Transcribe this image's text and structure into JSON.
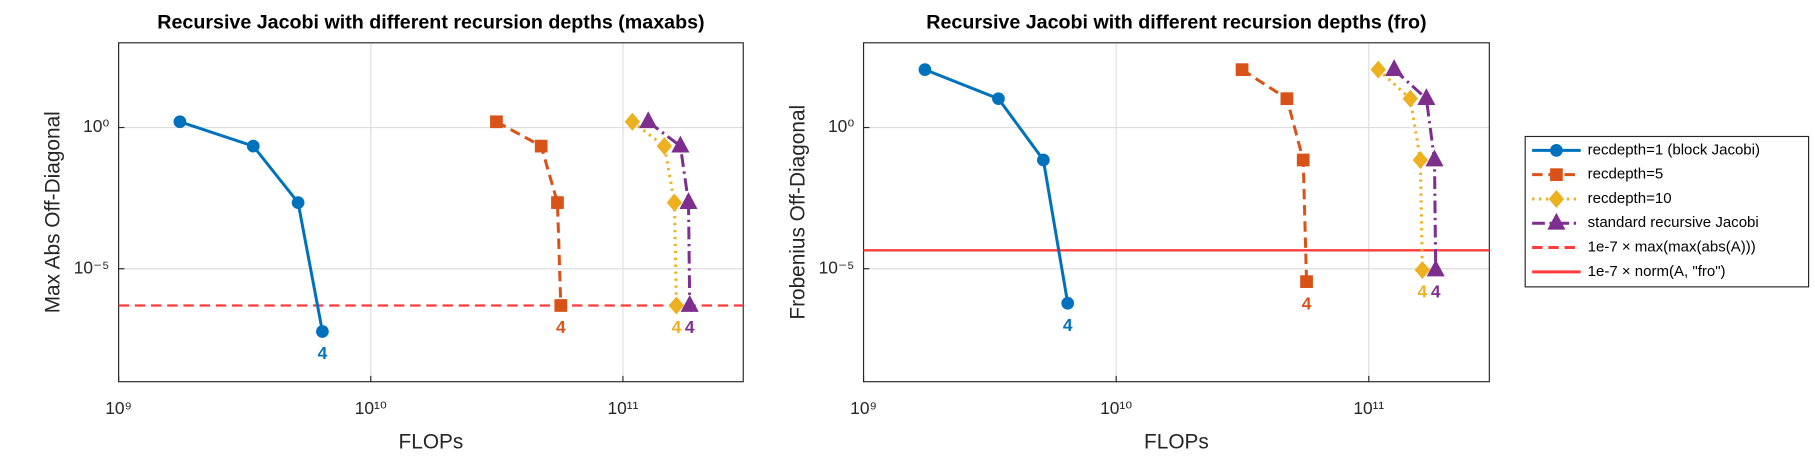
{
  "chart_data": [
    {
      "type": "line",
      "title": "Recursive Jacobi with different recursion depths (maxabs)",
      "xlabel": "FLOPs",
      "ylabel": "Max Abs Off-Diagonal",
      "xscale": "log",
      "yscale": "log",
      "xlim": [
        1000000000.0,
        300000000000.0
      ],
      "ylim": [
        1e-09,
        1000.0
      ],
      "xticks": [
        {
          "value": 1000000000.0,
          "label": "10⁹"
        },
        {
          "value": 10000000000.0,
          "label": "10¹⁰"
        },
        {
          "value": 100000000000.0,
          "label": "10¹¹"
        }
      ],
      "yticks": [
        {
          "value": 1e-05,
          "label": "10⁻⁵"
        },
        {
          "value": 1,
          "label": "10⁰"
        }
      ],
      "grid": true,
      "series": [
        {
          "name": "recdepth=1 (block Jacobi)",
          "color": "#0072BD",
          "marker": "circle",
          "linestyle": "solid",
          "x": [
            1750000000.0,
            3420000000.0,
            5150000000.0,
            6430000000.0
          ],
          "values": [
            1.6,
            0.22,
            0.0022,
            6e-08
          ],
          "end_label": "4"
        },
        {
          "name": "recdepth=5",
          "color": "#D95319",
          "marker": "square",
          "linestyle": "dashed",
          "x": [
            31500000000.0,
            47400000000.0,
            55000000000.0,
            56700000000.0
          ],
          "values": [
            1.6,
            0.22,
            0.0022,
            5e-07
          ],
          "end_label": "4"
        },
        {
          "name": "recdepth=10",
          "color": "#EDB120",
          "marker": "diamond",
          "linestyle": "dotted",
          "x": [
            109000000000.0,
            146000000000.0,
            160000000000.0,
            163000000000.0
          ],
          "values": [
            1.6,
            0.22,
            0.0022,
            5e-07
          ],
          "end_label": "4"
        },
        {
          "name": "standard recursive Jacobi",
          "color": "#7E2F8E",
          "marker": "triangle",
          "linestyle": "dashdot",
          "x": [
            126000000000.0,
            169000000000.0,
            182000000000.0,
            184000000000.0
          ],
          "values": [
            1.6,
            0.22,
            0.0022,
            5e-07
          ],
          "end_label": "4"
        }
      ],
      "hlines": [
        {
          "name": "1e-7 × max(max(abs(A)))",
          "color": "#FF3B3B",
          "linestyle": "dashed",
          "value": 5e-07
        }
      ]
    },
    {
      "type": "line",
      "title": "Recursive Jacobi with different recursion depths (fro)",
      "xlabel": "FLOPs",
      "ylabel": "Frobenius Off-Diagonal",
      "xscale": "log",
      "yscale": "log",
      "xlim": [
        1000000000.0,
        300000000000.0
      ],
      "ylim": [
        1e-09,
        1000.0
      ],
      "xticks": [
        {
          "value": 1000000000.0,
          "label": "10⁹"
        },
        {
          "value": 10000000000.0,
          "label": "10¹⁰"
        },
        {
          "value": 100000000000.0,
          "label": "10¹¹"
        }
      ],
      "yticks": [
        {
          "value": 1e-05,
          "label": "10⁻⁵"
        },
        {
          "value": 1,
          "label": "10⁰"
        }
      ],
      "grid": true,
      "legend": "east-outside",
      "series": [
        {
          "name": "recdepth=1 (block Jacobi)",
          "color": "#0072BD",
          "marker": "circle",
          "linestyle": "solid",
          "x": [
            1750000000.0,
            3420000000.0,
            5150000000.0,
            6430000000.0
          ],
          "values": [
            112,
            10.5,
            0.071,
            6e-07
          ],
          "end_label": "4"
        },
        {
          "name": "recdepth=5",
          "color": "#D95319",
          "marker": "square",
          "linestyle": "dashed",
          "x": [
            31500000000.0,
            47400000000.0,
            55000000000.0,
            56700000000.0
          ],
          "values": [
            112,
            10.5,
            0.071,
            3.5e-06
          ],
          "end_label": "4"
        },
        {
          "name": "recdepth=10",
          "color": "#EDB120",
          "marker": "diamond",
          "linestyle": "dotted",
          "x": [
            109000000000.0,
            146000000000.0,
            160000000000.0,
            163000000000.0
          ],
          "values": [
            112,
            10.5,
            0.071,
            9e-06
          ],
          "end_label": "4"
        },
        {
          "name": "standard recursive Jacobi",
          "color": "#7E2F8E",
          "marker": "triangle",
          "linestyle": "dashdot",
          "x": [
            126000000000.0,
            169000000000.0,
            182000000000.0,
            184000000000.0
          ],
          "values": [
            112,
            10.5,
            0.071,
            9e-06
          ],
          "end_label": "4"
        }
      ],
      "hlines": [
        {
          "name": "1e-7 × norm(A, \"fro\")",
          "color": "#FF3B3B",
          "linestyle": "solid",
          "value": 4.5e-05
        }
      ]
    }
  ]
}
